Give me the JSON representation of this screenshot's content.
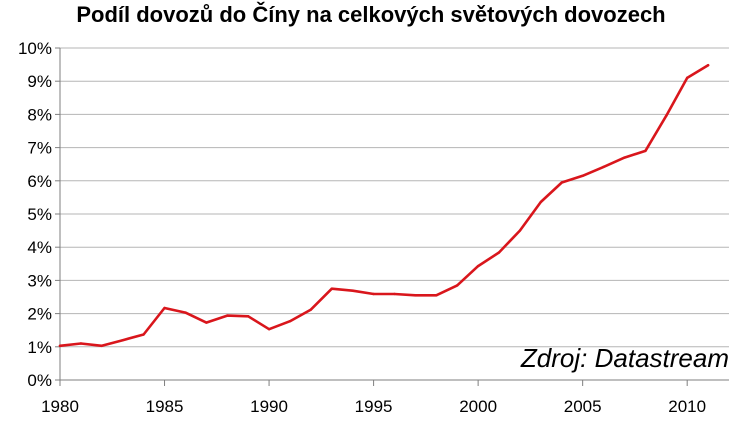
{
  "chart_data": {
    "type": "line",
    "title": "Podíl dovozů do Číny na celkových světových dovozech",
    "xlabel": "",
    "ylabel": "",
    "source": "Zdroj: Datastream",
    "xlim": [
      1980,
      2012
    ],
    "ylim": [
      0,
      10
    ],
    "x_ticks": [
      1980,
      1985,
      1990,
      1995,
      2000,
      2005,
      2010
    ],
    "y_ticks": [
      "0%",
      "1%",
      "2%",
      "3%",
      "4%",
      "5%",
      "6%",
      "7%",
      "8%",
      "9%",
      "10%"
    ],
    "grid": "horizontal",
    "series": [
      {
        "color": "#d9161c",
        "x": [
          1980,
          1981,
          1982,
          1983,
          1984,
          1985,
          1986,
          1987,
          1988,
          1989,
          1990,
          1991,
          1992,
          1993,
          1994,
          1995,
          1996,
          1997,
          1998,
          1999,
          2000,
          2001,
          2002,
          2003,
          2004,
          2005,
          2006,
          2007,
          2008,
          2009,
          2010,
          2011
        ],
        "y": [
          1.03,
          1.1,
          1.03,
          1.2,
          1.37,
          2.17,
          2.03,
          1.73,
          1.94,
          1.92,
          1.53,
          1.77,
          2.12,
          2.75,
          2.69,
          2.59,
          2.59,
          2.55,
          2.55,
          2.85,
          3.43,
          3.84,
          4.5,
          5.36,
          5.95,
          6.15,
          6.42,
          6.7,
          6.9,
          7.96,
          9.1,
          9.48
        ]
      }
    ]
  }
}
